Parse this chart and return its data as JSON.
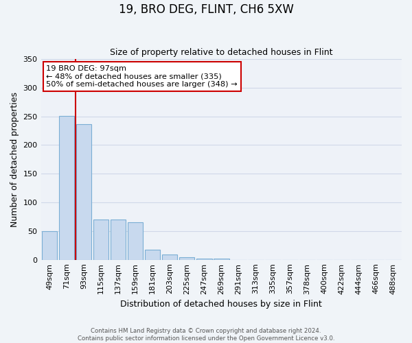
{
  "title": "19, BRO DEG, FLINT, CH6 5XW",
  "subtitle": "Size of property relative to detached houses in Flint",
  "xlabel": "Distribution of detached houses by size in Flint",
  "ylabel": "Number of detached properties",
  "bar_color": "#c8d9ee",
  "bar_edge_color": "#7aaed4",
  "categories": [
    "49sqm",
    "71sqm",
    "93sqm",
    "115sqm",
    "137sqm",
    "159sqm",
    "181sqm",
    "203sqm",
    "225sqm",
    "247sqm",
    "269sqm",
    "291sqm",
    "313sqm",
    "335sqm",
    "357sqm",
    "378sqm",
    "400sqm",
    "422sqm",
    "444sqm",
    "466sqm",
    "488sqm"
  ],
  "values": [
    50,
    251,
    237,
    70,
    70,
    65,
    18,
    9,
    5,
    2,
    2,
    0,
    0,
    0,
    0,
    0,
    0,
    0,
    0,
    0,
    0
  ],
  "ylim": [
    0,
    350
  ],
  "yticks": [
    0,
    50,
    100,
    150,
    200,
    250,
    300,
    350
  ],
  "vline_x_idx": 1.5,
  "vline_color": "#cc0000",
  "annotation_title": "19 BRO DEG: 97sqm",
  "annotation_line1": "← 48% of detached houses are smaller (335)",
  "annotation_line2": "50% of semi-detached houses are larger (348) →",
  "footer1": "Contains HM Land Registry data © Crown copyright and database right 2024.",
  "footer2": "Contains public sector information licensed under the Open Government Licence v3.0.",
  "bg_color": "#f0f4f8",
  "plot_bg_color": "#eef2f8"
}
